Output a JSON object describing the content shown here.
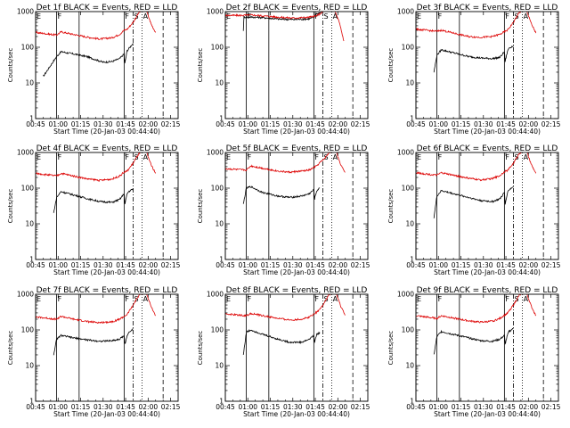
{
  "chart_data": {
    "type": "line",
    "layout": "3x3 grid of panels",
    "x_tick_labels": [
      "00:45",
      "01:00",
      "01:15",
      "01:30",
      "01:45",
      "02:00",
      "02:15"
    ],
    "x_range_min": [
      45,
      140
    ],
    "xlabel": "Start Time (20-Jan-03 00:44:40)",
    "ylabel": "Counts/sec",
    "y_scale": "log",
    "y_range": [
      1,
      1000
    ],
    "y_tick_labels": [
      "1",
      "10",
      "100",
      "1000"
    ],
    "legend_text": "BLACK = Events, RED = LLD",
    "colors": {
      "events": "#000000",
      "lld": "#dd0000"
    },
    "panels": [
      {
        "title": "Det  1f BLACK = Events, RED = LLD",
        "series": [
          {
            "name": "Events",
            "color": "#000000",
            "x_min": [
              50,
              59,
              62,
              70,
              79,
              85,
              90,
              96,
              101,
              104,
              104.5,
              106,
              107,
              110
            ],
            "values": [
              15,
              55,
              75,
              65,
              55,
              45,
              38,
              40,
              48,
              65,
              35,
              80,
              90,
              130
            ]
          },
          {
            "name": "LLD",
            "color": "#dd0000",
            "x_min": [
              45,
              59,
              62,
              70,
              80,
              88,
              96,
              101,
              104,
              106,
              110,
              114,
              116,
              118,
              119,
              122,
              125
            ],
            "values": [
              260,
              220,
              270,
              230,
              190,
              170,
              185,
              230,
              300,
              320,
              500,
              950,
              1050,
              1100,
              1000,
              450,
              260
            ]
          }
        ]
      },
      {
        "title": "Det  2f BLACK = Events, RED = LLD",
        "series": [
          {
            "name": "Events",
            "color": "#000000",
            "x_min": [
              57,
              57.4,
              59,
              63,
              70,
              80,
              90,
              100,
              104.5,
              105,
              109
            ],
            "values": [
              300,
              700,
              700,
              700,
              680,
              620,
              600,
              620,
              700,
              850,
              950
            ]
          },
          {
            "name": "LLD",
            "color": "#dd0000",
            "x_min": [
              45,
              55,
              63,
              70,
              80,
              90,
              100,
              105,
              109,
              110,
              112,
              115,
              118,
              121,
              124
            ],
            "values": [
              780,
              780,
              800,
              760,
              700,
              660,
              690,
              740,
              900,
              1000,
              1100,
              1200,
              1050,
              500,
              150
            ]
          }
        ]
      },
      {
        "title": "Det  3f BLACK = Events, RED = LLD",
        "series": [
          {
            "name": "Events",
            "color": "#000000",
            "x_min": [
              57,
              59,
              62,
              70,
              80,
              88,
              96,
              101,
              104,
              104.5,
              106,
              107,
              110
            ],
            "values": [
              20,
              60,
              85,
              70,
              55,
              50,
              48,
              52,
              75,
              40,
              75,
              95,
              110
            ]
          },
          {
            "name": "LLD",
            "color": "#dd0000",
            "x_min": [
              45,
              59,
              62,
              70,
              80,
              88,
              96,
              101,
              104,
              106,
              110,
              114,
              116,
              118,
              119,
              122,
              125
            ],
            "values": [
              320,
              280,
              300,
              250,
              200,
              190,
              200,
              230,
              270,
              300,
              500,
              950,
              1050,
              1100,
              1000,
              450,
              250
            ]
          }
        ]
      },
      {
        "title": "Det  4f BLACK = Events, RED = LLD",
        "series": [
          {
            "name": "Events",
            "color": "#000000",
            "x_min": [
              57,
              59,
              62,
              70,
              80,
              88,
              96,
              101,
              104,
              104.5,
              106,
              107,
              110
            ],
            "values": [
              20,
              55,
              80,
              65,
              50,
              42,
              40,
              48,
              70,
              35,
              70,
              80,
              95
            ]
          },
          {
            "name": "LLD",
            "color": "#dd0000",
            "x_min": [
              45,
              59,
              62,
              70,
              80,
              88,
              96,
              101,
              104,
              106,
              110,
              114,
              116,
              118,
              119,
              122,
              125
            ],
            "values": [
              260,
              220,
              260,
              220,
              180,
              165,
              180,
              220,
              280,
              300,
              500,
              950,
              1050,
              1100,
              1000,
              450,
              260
            ]
          }
        ]
      },
      {
        "title": "Det  5f BLACK = Events, RED = LLD",
        "series": [
          {
            "name": "Events",
            "color": "#000000",
            "x_min": [
              57,
              59,
              62,
              70,
              80,
              88,
              96,
              101,
              104,
              104.5,
              106,
              108
            ],
            "values": [
              35,
              100,
              110,
              75,
              60,
              55,
              60,
              70,
              90,
              50,
              85,
              100
            ]
          },
          {
            "name": "LLD",
            "color": "#dd0000",
            "x_min": [
              45,
              59,
              62,
              70,
              80,
              88,
              96,
              101,
              104,
              106,
              108,
              110,
              114,
              116,
              118,
              119,
              122,
              125
            ],
            "values": [
              350,
              320,
              420,
              360,
              300,
              280,
              300,
              320,
              380,
              420,
              520,
              600,
              950,
              1050,
              1100,
              1000,
              450,
              280
            ]
          }
        ]
      },
      {
        "title": "Det  6f BLACK = Events, RED = LLD",
        "series": [
          {
            "name": "Events",
            "color": "#000000",
            "x_min": [
              57,
              59,
              62,
              70,
              80,
              88,
              96,
              101,
              104,
              104.5,
              106,
              107,
              110
            ],
            "values": [
              15,
              60,
              85,
              70,
              55,
              45,
              42,
              50,
              75,
              35,
              75,
              90,
              110
            ]
          },
          {
            "name": "LLD",
            "color": "#dd0000",
            "x_min": [
              45,
              59,
              62,
              70,
              80,
              88,
              96,
              101,
              104,
              106,
              110,
              114,
              116,
              118,
              119,
              122,
              125
            ],
            "values": [
              270,
              230,
              270,
              230,
              190,
              170,
              185,
              225,
              290,
              310,
              500,
              950,
              1050,
              1100,
              1000,
              450,
              260
            ]
          }
        ]
      },
      {
        "title": "Det  7f BLACK = Events, RED = LLD",
        "series": [
          {
            "name": "Events",
            "color": "#000000",
            "x_min": [
              57,
              59,
              62,
              70,
              80,
              88,
              96,
              101,
              104,
              104.5,
              106,
              107,
              110
            ],
            "values": [
              20,
              55,
              70,
              60,
              52,
              48,
              50,
              55,
              70,
              40,
              65,
              85,
              110
            ]
          },
          {
            "name": "LLD",
            "color": "#dd0000",
            "x_min": [
              45,
              59,
              62,
              70,
              80,
              88,
              96,
              101,
              104,
              106,
              110,
              114,
              116,
              118,
              119,
              122,
              125
            ],
            "values": [
              230,
              200,
              240,
              200,
              170,
              160,
              170,
              200,
              240,
              270,
              500,
              950,
              1050,
              1100,
              1000,
              450,
              250
            ]
          }
        ]
      },
      {
        "title": "Det  8f BLACK = Events, RED = LLD",
        "series": [
          {
            "name": "Events",
            "color": "#000000",
            "x_min": [
              57,
              59,
              62,
              70,
              80,
              88,
              96,
              101,
              104,
              104.5,
              106,
              108
            ],
            "values": [
              20,
              85,
              100,
              75,
              55,
              45,
              45,
              55,
              70,
              45,
              75,
              85
            ]
          },
          {
            "name": "LLD",
            "color": "#dd0000",
            "x_min": [
              45,
              59,
              62,
              70,
              80,
              88,
              96,
              101,
              104,
              106,
              108,
              110,
              114,
              116,
              118,
              119,
              122,
              125
            ],
            "values": [
              280,
              250,
              290,
              250,
              210,
              190,
              200,
              230,
              280,
              320,
              380,
              500,
              950,
              1050,
              1100,
              1000,
              450,
              260
            ]
          }
        ]
      },
      {
        "title": "Det  9f BLACK = Events, RED = LLD",
        "series": [
          {
            "name": "Events",
            "color": "#000000",
            "x_min": [
              57,
              59,
              62,
              70,
              80,
              88,
              96,
              101,
              104,
              104.5,
              106,
              107,
              110
            ],
            "values": [
              20,
              65,
              90,
              75,
              60,
              50,
              48,
              55,
              70,
              40,
              70,
              90,
              110
            ]
          },
          {
            "name": "LLD",
            "color": "#dd0000",
            "x_min": [
              45,
              59,
              62,
              70,
              80,
              88,
              96,
              101,
              104,
              106,
              110,
              114,
              116,
              118,
              119,
              122,
              125
            ],
            "values": [
              250,
              210,
              250,
              215,
              180,
              165,
              175,
              210,
              260,
              290,
              500,
              950,
              1050,
              1100,
              1000,
              450,
              250
            ]
          }
        ]
      }
    ],
    "marker_lines": [
      {
        "x_min": 45,
        "style": "solid",
        "label": "E"
      },
      {
        "x_min": 59,
        "style": "solid",
        "label": "F"
      },
      {
        "x_min": 74,
        "style": "solid",
        "label": ""
      },
      {
        "x_min": 104,
        "style": "solid",
        "label": "F"
      },
      {
        "x_min": 110,
        "style": "dash-dot",
        "label": "S"
      },
      {
        "x_min": 116,
        "style": "dotted",
        "label": "A"
      },
      {
        "x_min": 130,
        "style": "dashed",
        "label": ""
      }
    ]
  }
}
